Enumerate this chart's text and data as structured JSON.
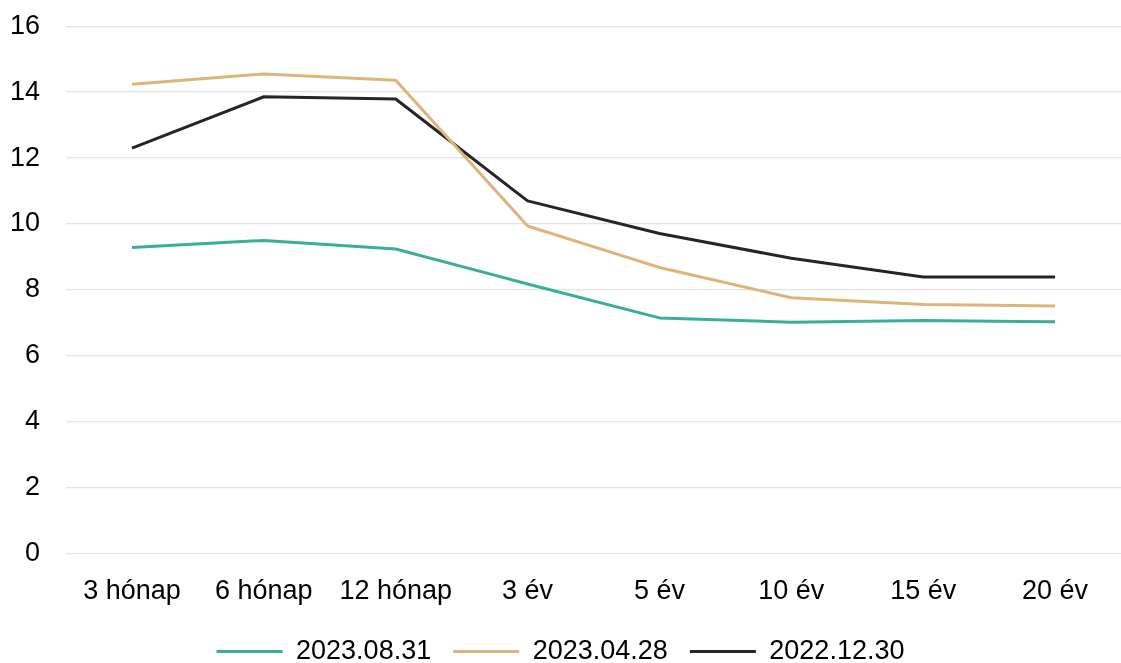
{
  "chart_data": {
    "type": "line",
    "categories": [
      "3 hónap",
      "6 hónap",
      "12 hónap",
      "3 év",
      "5 év",
      "10 év",
      "15 év",
      "20 év"
    ],
    "series": [
      {
        "name": "2023.08.31",
        "color": "#3aaf98",
        "values": [
          9.29,
          9.5,
          9.24,
          8.18,
          7.15,
          7.02,
          7.07,
          7.03
        ]
      },
      {
        "name": "2023.04.28",
        "color": "#dcb57c",
        "values": [
          14.24,
          14.55,
          14.36,
          9.94,
          8.68,
          7.76,
          7.56,
          7.51
        ]
      },
      {
        "name": "2022.12.30",
        "color": "#262626",
        "values": [
          12.3,
          13.86,
          13.79,
          10.7,
          9.71,
          8.96,
          8.39,
          8.39
        ]
      }
    ],
    "ylim": [
      0,
      16
    ],
    "yticks": [
      0,
      2,
      4,
      6,
      8,
      10,
      12,
      14,
      16
    ],
    "grid": "y",
    "legend": "bottom"
  }
}
